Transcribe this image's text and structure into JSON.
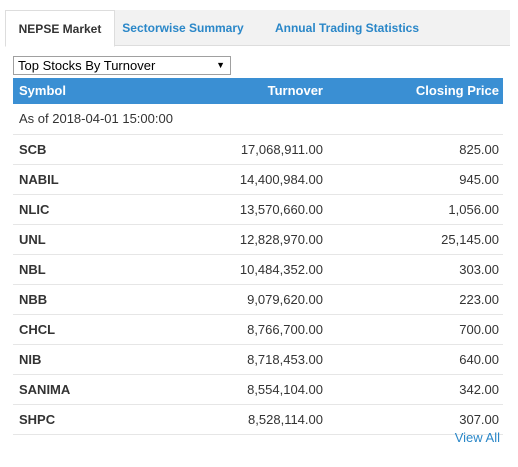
{
  "tabs": [
    {
      "label": "NEPSE Market"
    },
    {
      "label": "Sectorwise Summary"
    },
    {
      "label": "Annual Trading Statistics"
    }
  ],
  "filter": {
    "selected": "Top Stocks By Turnover"
  },
  "table": {
    "headers": {
      "symbol": "Symbol",
      "turnover": "Turnover",
      "closing": "Closing Price"
    },
    "as_of": "As of 2018-04-01 15:00:00",
    "rows": [
      {
        "symbol": "SCB",
        "turnover": "17,068,911.00",
        "closing": "825.00"
      },
      {
        "symbol": "NABIL",
        "turnover": "14,400,984.00",
        "closing": "945.00"
      },
      {
        "symbol": "NLIC",
        "turnover": "13,570,660.00",
        "closing": "1,056.00"
      },
      {
        "symbol": "UNL",
        "turnover": "12,828,970.00",
        "closing": "25,145.00"
      },
      {
        "symbol": "NBL",
        "turnover": "10,484,352.00",
        "closing": "303.00"
      },
      {
        "symbol": "NBB",
        "turnover": "9,079,620.00",
        "closing": "223.00"
      },
      {
        "symbol": "CHCL",
        "turnover": "8,766,700.00",
        "closing": "700.00"
      },
      {
        "symbol": "NIB",
        "turnover": "8,718,453.00",
        "closing": "640.00"
      },
      {
        "symbol": "SANIMA",
        "turnover": "8,554,104.00",
        "closing": "342.00"
      },
      {
        "symbol": "SHPC",
        "turnover": "8,528,114.00",
        "closing": "307.00"
      }
    ]
  },
  "view_all": "View All",
  "colors": {
    "header_bg": "#3a8fd3",
    "link": "#2a87c8"
  }
}
